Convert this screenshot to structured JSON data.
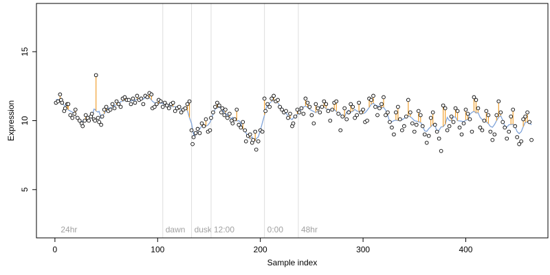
{
  "chart_data": {
    "type": "scatter",
    "title": "",
    "xlabel": "Sample index",
    "ylabel": "Expression",
    "xlim": [
      -18,
      480
    ],
    "ylim": [
      1.5,
      18.5
    ],
    "xticks": [
      0,
      100,
      200,
      300,
      400
    ],
    "yticks": [
      5,
      10,
      15
    ],
    "grid": false,
    "legend": "none",
    "colors": {
      "fit_line": "#7fa3d9",
      "residual_line": "#f0a030",
      "point_stroke": "#000000",
      "point_fill": "#ffffff",
      "annotation_line": "#dddddd",
      "annotation_text": "#a0a0a0"
    },
    "annotations": [
      {
        "label": "24hr",
        "x": 3
      },
      {
        "label": "dawn",
        "x": 105
      },
      {
        "label": "dusk",
        "x": 133
      },
      {
        "label": "12:00",
        "x": 152
      },
      {
        "label": "0:00",
        "x": 204
      },
      {
        "label": "48hr",
        "x": 237
      }
    ],
    "points": [
      [
        1,
        11.3
      ],
      [
        3,
        11.4
      ],
      [
        5,
        11.9
      ],
      [
        6,
        11.5
      ],
      [
        7,
        11.3
      ],
      [
        9,
        10.7
      ],
      [
        10,
        10.9
      ],
      [
        12,
        11.2
      ],
      [
        13,
        11.2
      ],
      [
        15,
        10.4
      ],
      [
        17,
        10.2
      ],
      [
        19,
        10.5
      ],
      [
        20,
        10.8
      ],
      [
        22,
        10.2
      ],
      [
        24,
        10.0
      ],
      [
        26,
        9.8
      ],
      [
        27,
        9.6
      ],
      [
        29,
        10.0
      ],
      [
        30,
        10.4
      ],
      [
        32,
        10.2
      ],
      [
        33,
        10.0
      ],
      [
        35,
        10.3
      ],
      [
        36,
        10.5
      ],
      [
        38,
        10.1
      ],
      [
        39,
        10.0
      ],
      [
        40,
        13.3
      ],
      [
        42,
        10.2
      ],
      [
        43,
        9.9
      ],
      [
        45,
        9.7
      ],
      [
        46,
        10.3
      ],
      [
        48,
        10.8
      ],
      [
        50,
        11.0
      ],
      [
        52,
        10.7
      ],
      [
        54,
        10.8
      ],
      [
        56,
        11.2
      ],
      [
        58,
        10.9
      ],
      [
        60,
        11.4
      ],
      [
        62,
        11.2
      ],
      [
        64,
        11.0
      ],
      [
        66,
        11.6
      ],
      [
        68,
        11.7
      ],
      [
        70,
        11.5
      ],
      [
        72,
        11.5
      ],
      [
        74,
        11.2
      ],
      [
        76,
        11.6
      ],
      [
        78,
        11.3
      ],
      [
        80,
        11.8
      ],
      [
        82,
        11.5
      ],
      [
        84,
        11.6
      ],
      [
        86,
        11.2
      ],
      [
        88,
        11.8
      ],
      [
        90,
        11.7
      ],
      [
        92,
        12.0
      ],
      [
        94,
        11.9
      ],
      [
        95,
        10.9
      ],
      [
        97,
        11.0
      ],
      [
        99,
        11.2
      ],
      [
        101,
        11.5
      ],
      [
        103,
        11.4
      ],
      [
        105,
        11.0
      ],
      [
        107,
        11.3
      ],
      [
        109,
        11.1
      ],
      [
        111,
        10.9
      ],
      [
        113,
        11.2
      ],
      [
        115,
        11.3
      ],
      [
        117,
        10.7
      ],
      [
        119,
        10.9
      ],
      [
        121,
        11.0
      ],
      [
        123,
        10.6
      ],
      [
        125,
        10.8
      ],
      [
        127,
        10.9
      ],
      [
        129,
        11.2
      ],
      [
        131,
        11.4
      ],
      [
        133,
        9.3
      ],
      [
        134,
        8.3
      ],
      [
        135,
        8.8
      ],
      [
        137,
        9.1
      ],
      [
        139,
        9.4
      ],
      [
        141,
        9.1
      ],
      [
        143,
        9.8
      ],
      [
        145,
        9.6
      ],
      [
        147,
        10.1
      ],
      [
        149,
        9.2
      ],
      [
        151,
        9.3
      ],
      [
        152,
        10.2
      ],
      [
        154,
        10.6
      ],
      [
        156,
        11.0
      ],
      [
        158,
        11.3
      ],
      [
        160,
        11.1
      ],
      [
        162,
        10.6
      ],
      [
        163,
        10.9
      ],
      [
        165,
        10.4
      ],
      [
        166,
        10.8
      ],
      [
        168,
        10.2
      ],
      [
        170,
        10.5
      ],
      [
        172,
        10.0
      ],
      [
        173,
        9.8
      ],
      [
        175,
        10.1
      ],
      [
        177,
        10.8
      ],
      [
        179,
        9.7
      ],
      [
        181,
        9.5
      ],
      [
        183,
        9.9
      ],
      [
        185,
        9.3
      ],
      [
        186,
        8.5
      ],
      [
        188,
        8.9
      ],
      [
        190,
        9.0
      ],
      [
        192,
        8.4
      ],
      [
        193,
        8.6
      ],
      [
        195,
        9.2
      ],
      [
        196,
        7.9
      ],
      [
        198,
        8.5
      ],
      [
        200,
        9.3
      ],
      [
        202,
        9.2
      ],
      [
        204,
        11.6
      ],
      [
        205,
        10.7
      ],
      [
        207,
        11.2
      ],
      [
        209,
        11.0
      ],
      [
        211,
        11.6
      ],
      [
        213,
        11.8
      ],
      [
        215,
        11.4
      ],
      [
        217,
        11.5
      ],
      [
        219,
        11.0
      ],
      [
        221,
        10.8
      ],
      [
        223,
        10.6
      ],
      [
        225,
        10.7
      ],
      [
        227,
        10.2
      ],
      [
        229,
        10.5
      ],
      [
        231,
        9.6
      ],
      [
        232,
        9.8
      ],
      [
        234,
        10.3
      ],
      [
        236,
        10.8
      ],
      [
        238,
        10.6
      ],
      [
        240,
        10.9
      ],
      [
        242,
        10.5
      ],
      [
        244,
        11.6
      ],
      [
        246,
        11.3
      ],
      [
        248,
        11.0
      ],
      [
        250,
        10.4
      ],
      [
        252,
        9.8
      ],
      [
        254,
        11.2
      ],
      [
        256,
        10.9
      ],
      [
        258,
        10.6
      ],
      [
        260,
        11.0
      ],
      [
        262,
        11.4
      ],
      [
        264,
        11.2
      ],
      [
        266,
        10.7
      ],
      [
        268,
        10.0
      ],
      [
        270,
        10.8
      ],
      [
        272,
        11.3
      ],
      [
        274,
        11.4
      ],
      [
        276,
        10.5
      ],
      [
        278,
        9.3
      ],
      [
        280,
        10.3
      ],
      [
        282,
        10.9
      ],
      [
        284,
        10.1
      ],
      [
        286,
        10.6
      ],
      [
        288,
        11.2
      ],
      [
        290,
        11.0
      ],
      [
        292,
        10.2
      ],
      [
        294,
        10.4
      ],
      [
        296,
        11.3
      ],
      [
        298,
        10.6
      ],
      [
        300,
        10.8
      ],
      [
        302,
        9.9
      ],
      [
        304,
        10.0
      ],
      [
        306,
        11.6
      ],
      [
        308,
        11.5
      ],
      [
        310,
        11.8
      ],
      [
        312,
        11.0
      ],
      [
        314,
        10.4
      ],
      [
        316,
        10.9
      ],
      [
        318,
        11.2
      ],
      [
        320,
        11.7
      ],
      [
        322,
        10.4
      ],
      [
        324,
        10.6
      ],
      [
        326,
        9.9
      ],
      [
        328,
        9.5
      ],
      [
        330,
        9.0
      ],
      [
        332,
        10.6
      ],
      [
        334,
        11.0
      ],
      [
        336,
        10.1
      ],
      [
        338,
        9.3
      ],
      [
        340,
        9.6
      ],
      [
        342,
        10.3
      ],
      [
        344,
        11.5
      ],
      [
        346,
        10.6
      ],
      [
        348,
        9.8
      ],
      [
        350,
        9.2
      ],
      [
        352,
        9.7
      ],
      [
        354,
        10.7
      ],
      [
        356,
        10.4
      ],
      [
        358,
        9.6
      ],
      [
        360,
        9.0
      ],
      [
        362,
        8.4
      ],
      [
        364,
        8.9
      ],
      [
        366,
        10.2
      ],
      [
        368,
        10.6
      ],
      [
        370,
        9.7
      ],
      [
        372,
        9.2
      ],
      [
        374,
        8.7
      ],
      [
        376,
        7.8
      ],
      [
        378,
        11.1
      ],
      [
        380,
        10.9
      ],
      [
        382,
        9.3
      ],
      [
        384,
        9.6
      ],
      [
        386,
        10.3
      ],
      [
        388,
        9.9
      ],
      [
        390,
        10.9
      ],
      [
        392,
        10.7
      ],
      [
        394,
        9.5
      ],
      [
        396,
        9.0
      ],
      [
        398,
        9.8
      ],
      [
        400,
        10.8
      ],
      [
        402,
        10.5
      ],
      [
        404,
        10.1
      ],
      [
        406,
        9.2
      ],
      [
        408,
        11.7
      ],
      [
        410,
        11.5
      ],
      [
        412,
        10.9
      ],
      [
        414,
        9.5
      ],
      [
        416,
        9.3
      ],
      [
        418,
        10.0
      ],
      [
        420,
        10.7
      ],
      [
        422,
        10.4
      ],
      [
        424,
        9.2
      ],
      [
        426,
        8.6
      ],
      [
        428,
        9.0
      ],
      [
        430,
        10.4
      ],
      [
        432,
        11.4
      ],
      [
        434,
        10.6
      ],
      [
        436,
        9.9
      ],
      [
        438,
        9.5
      ],
      [
        440,
        8.7
      ],
      [
        442,
        9.2
      ],
      [
        444,
        10.3
      ],
      [
        446,
        10.8
      ],
      [
        448,
        9.6
      ],
      [
        450,
        8.8
      ],
      [
        452,
        8.3
      ],
      [
        454,
        8.5
      ],
      [
        456,
        10.1
      ],
      [
        458,
        10.3
      ],
      [
        460,
        10.6
      ],
      [
        462,
        9.9
      ],
      [
        464,
        8.6
      ]
    ]
  }
}
